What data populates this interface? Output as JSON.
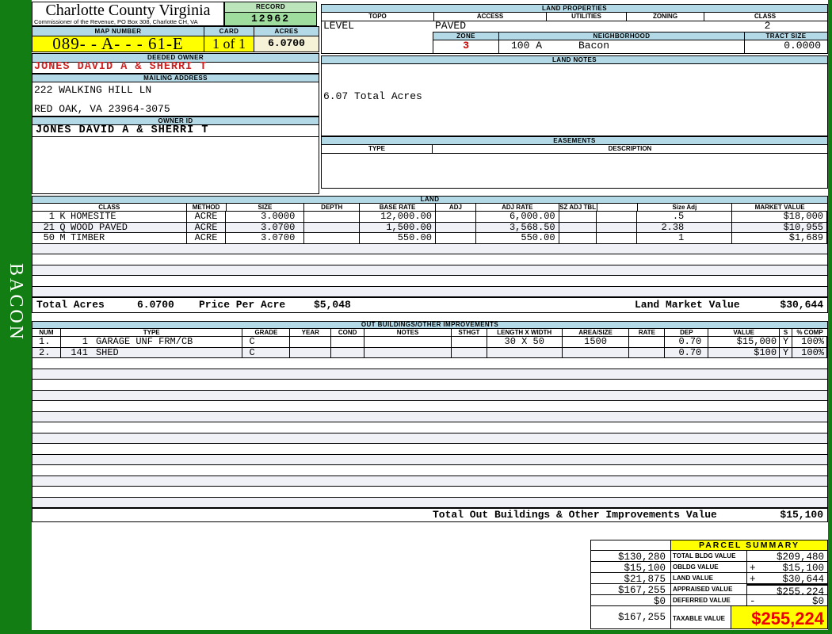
{
  "sidebar": {
    "label": "BACON"
  },
  "header": {
    "county": "Charlotte County Virginia",
    "commissioner": "Commissioner of the Revenue, PO Box 308, Charlotte CH, VA",
    "record_label": "RECORD",
    "record_value": "12962",
    "map_number_label": "MAP NUMBER",
    "map_number": "089- - A- -  - 61-E",
    "card_label": "CARD",
    "card": "1 of 1",
    "acres_label": "ACRES",
    "acres": "6.0700"
  },
  "owner": {
    "deeded_owner_label": "DEEDED OWNER",
    "deeded_owner": "JONES DAVID A & SHERRI T",
    "mailing_address_label": "MAILING ADDRESS",
    "address_line1": "222 WALKING HILL LN",
    "address_line2": "RED OAK, VA 23964-3075",
    "owner_id_label": "OWNER ID",
    "owner_id": "JONES DAVID A & SHERRI T"
  },
  "land_properties": {
    "title": "LAND PROPERTIES",
    "headers": [
      "TOPO",
      "ACCESS",
      "UTILITIES",
      "ZONING",
      "CLASS"
    ],
    "topo": "LEVEL",
    "access": "PAVED",
    "utilities": "",
    "zoning": "",
    "class": "2",
    "zone_label": "ZONE",
    "zone": "3",
    "neighborhood_label": "NEIGHBORHOOD",
    "neighborhood_code": "100 A",
    "neighborhood_name": "Bacon",
    "tract_size_label": "TRACT SIZE",
    "tract_size": "0.0000"
  },
  "land_notes": {
    "title": "LAND NOTES",
    "note": "6.07 Total Acres"
  },
  "easements": {
    "title": "EASEMENTS",
    "type_label": "TYPE",
    "description_label": "DESCRIPTION"
  },
  "land": {
    "title": "LAND",
    "headers": [
      "CLASS",
      "METHOD",
      "SIZE",
      "DEPTH",
      "BASE RATE",
      "ADJ",
      "ADJ RATE",
      "SZ ADJ TBL",
      "",
      "Size Adj",
      "MARKET VALUE"
    ],
    "rows": [
      {
        "num": "1",
        "code": "K",
        "name": "HOMESITE",
        "method": "ACRE",
        "size": "3.0000",
        "depth": "",
        "base_rate": "12,000.00",
        "adj": "",
        "adj_rate": "6,000.00",
        "sz_adj_tbl": "",
        "size_adj": ".5",
        "market_value": "$18,000"
      },
      {
        "num": "21",
        "code": "Q",
        "name": "WOOD PAVED",
        "method": "ACRE",
        "size": "3.0700",
        "depth": "",
        "base_rate": "1,500.00",
        "adj": "",
        "adj_rate": "3,568.50",
        "sz_adj_tbl": "",
        "size_adj": "2.38",
        "market_value": "$10,955"
      },
      {
        "num": "50",
        "code": "M",
        "name": "TIMBER",
        "method": "ACRE",
        "size": "3.0700",
        "depth": "",
        "base_rate": "550.00",
        "adj": "",
        "adj_rate": "550.00",
        "sz_adj_tbl": "",
        "size_adj": "1",
        "market_value": "$1,689"
      }
    ],
    "empty_row_count": 5,
    "total_acres_label": "Total Acres",
    "total_acres": "6.0700",
    "price_per_acre_label": "Price Per Acre",
    "price_per_acre": "$5,048",
    "land_market_value_label": "Land Market Value",
    "land_market_value": "$30,644"
  },
  "out_buildings": {
    "title": "OUT BUILDINGS/OTHER IMPROVEMENTS",
    "headers": [
      "NUM",
      "TYPE",
      "GRADE",
      "YEAR",
      "COND",
      "NOTES",
      "STHGT",
      "LENGTH X WIDTH",
      "AREA/SIZE",
      "RATE",
      "DEP",
      "VALUE",
      "S",
      "% COMP"
    ],
    "rows": [
      {
        "num": "1.",
        "code": "1",
        "type": "GARAGE UNF FRM/CB",
        "grade": "C",
        "year": "",
        "cond": "",
        "notes": "",
        "sthgt": "",
        "length_width": "30 X 50",
        "area_size": "1500",
        "rate": "",
        "dep": "0.70",
        "value": "$15,000",
        "s": "Y",
        "pct_comp": "100%"
      },
      {
        "num": "2.",
        "code": "141",
        "type": "SHED",
        "grade": "C",
        "year": "",
        "cond": "",
        "notes": "",
        "sthgt": "",
        "length_width": "",
        "area_size": "",
        "rate": "",
        "dep": "0.70",
        "value": "$100",
        "s": "Y",
        "pct_comp": "100%"
      }
    ],
    "empty_row_count": 14,
    "total_label": "Total Out Buildings & Other Improvements Value",
    "total_value": "$15,100"
  },
  "parcel_summary": {
    "title": "PARCEL SUMMARY",
    "rows": [
      {
        "left": "$130,280",
        "label": "TOTAL BLDG VALUE",
        "sign": "",
        "value": "$209,480"
      },
      {
        "left": "$15,100",
        "label": "OBLDG VALUE",
        "sign": "+",
        "value": "$15,100"
      },
      {
        "left": "$21,875",
        "label": "LAND VALUE",
        "sign": "+",
        "value": "$30,644"
      },
      {
        "left": "$167,255",
        "label": "APPRAISED VALUE",
        "sign": "",
        "value": "$255,224"
      },
      {
        "left": "$0",
        "label": "DEFERRED VALUE",
        "sign": "-",
        "value": "$0"
      }
    ],
    "taxable": {
      "left": "$167,255",
      "label": "TAXABLE VALUE",
      "value": "$255,224"
    }
  },
  "colors": {
    "page_green": "#127d12",
    "bar_blue": "#b3d9e6",
    "record_green_light": "#bce5bc",
    "record_green": "#9edd9e",
    "yellow": "#ffff00",
    "cream": "#f5f2d8",
    "owner_red": "#cc2222",
    "zone_red": "#cc0000",
    "taxable_red": "#ee0000",
    "row_stripe": "#f0f1f6"
  }
}
